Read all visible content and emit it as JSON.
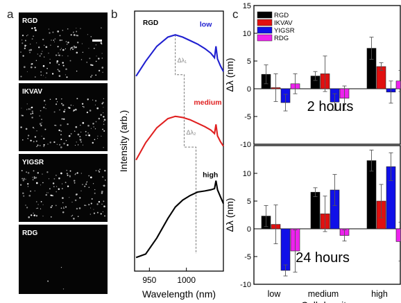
{
  "figure": {
    "panel_letters": [
      "a",
      "b",
      "c"
    ]
  },
  "panel_a": {
    "images": [
      {
        "label": "RGD",
        "dot_density": "medium"
      },
      {
        "label": "IKVAV",
        "dot_density": "medium"
      },
      {
        "label": "YIGSR",
        "dot_density": "medium"
      },
      {
        "label": "RDG",
        "dot_density": "very-low"
      }
    ],
    "scale_bar": true
  },
  "chart_data": [
    {
      "type": "line",
      "panel": "b",
      "title": "RGD",
      "xlabel": "Wavelength (nm)",
      "ylabel": "Intensity (arb.)",
      "xlim": [
        930,
        1050
      ],
      "x_ticks": [
        950,
        1000
      ],
      "y_ticks": [],
      "grid": false,
      "series": [
        {
          "name": "low",
          "color": "#1f1fd0",
          "x": [
            932,
            945,
            960,
            975,
            985,
            995,
            1005,
            1015,
            1025,
            1033,
            1038,
            1040,
            1042,
            1046,
            1050
          ],
          "y": [
            8.25,
            8.9,
            9.55,
            9.95,
            10.05,
            9.95,
            9.8,
            9.65,
            9.45,
            9.25,
            9.05,
            9.55,
            9.0,
            8.7,
            8.45
          ]
        },
        {
          "name": "medium",
          "color": "#e02020",
          "x": [
            932,
            945,
            960,
            975,
            985,
            995,
            1005,
            1015,
            1025,
            1033,
            1038,
            1040,
            1042,
            1046,
            1050
          ],
          "y": [
            4.6,
            5.35,
            6.0,
            6.4,
            6.5,
            6.45,
            6.35,
            6.2,
            6.05,
            5.9,
            5.75,
            6.15,
            5.65,
            5.4,
            5.2
          ]
        },
        {
          "name": "high",
          "color": "#000000",
          "x": [
            932,
            945,
            960,
            975,
            985,
            995,
            1005,
            1015,
            1025,
            1033,
            1038,
            1040,
            1042,
            1046,
            1050
          ],
          "y": [
            0.35,
            0.5,
            1.2,
            2.05,
            2.55,
            2.85,
            3.05,
            3.2,
            3.25,
            3.3,
            3.35,
            3.7,
            3.3,
            3.0,
            2.7
          ]
        }
      ],
      "annotations": [
        {
          "text": "Δλ₁",
          "type": "step-marker"
        },
        {
          "text": "Δλ₂",
          "type": "step-marker"
        }
      ],
      "peak_positions": [
        985,
        997,
        1013
      ]
    },
    {
      "type": "bar",
      "panel": "c-top",
      "annotation": "2 hours",
      "ylabel": "Δλ (nm)",
      "ylim": [
        -10,
        15
      ],
      "y_ticks": [
        -10,
        -5,
        0,
        5,
        10,
        15
      ],
      "categories": [
        "low",
        "medium",
        "high"
      ],
      "legend_position": "top-left",
      "series": [
        {
          "name": "RGD",
          "color": "#000000",
          "values": [
            2.6,
            2.3,
            7.3
          ],
          "errors": [
            1.7,
            0.8,
            2.0
          ]
        },
        {
          "name": "IKVAV",
          "color": "#e01010",
          "values": [
            0.2,
            2.7,
            4.0
          ],
          "errors": [
            2.5,
            3.2,
            0.7
          ]
        },
        {
          "name": "YIGSR",
          "color": "#1010e8",
          "values": [
            -2.5,
            -2.4,
            -0.6
          ],
          "errors": [
            1.5,
            1.5,
            2.0
          ]
        },
        {
          "name": "RDG",
          "color": "#ee22ee",
          "values": [
            0.9,
            -1.7,
            1.4
          ],
          "errors": [
            1.8,
            2.2,
            1.9
          ]
        }
      ]
    },
    {
      "type": "bar",
      "panel": "c-bottom",
      "annotation": "24 hours",
      "xlabel": "Cell density",
      "ylabel": "Δλ (nm)",
      "ylim": [
        -10,
        15
      ],
      "y_ticks": [
        -10,
        -5,
        0,
        5,
        10
      ],
      "categories": [
        "low",
        "medium",
        "high"
      ],
      "series": [
        {
          "name": "RGD",
          "color": "#000000",
          "values": [
            2.3,
            6.6,
            12.3
          ],
          "errors": [
            1.9,
            0.8,
            1.9
          ]
        },
        {
          "name": "IKVAV",
          "color": "#e01010",
          "values": [
            0.8,
            2.7,
            5.0
          ],
          "errors": [
            3.5,
            3.2,
            3.0
          ]
        },
        {
          "name": "YIGSR",
          "color": "#1010e8",
          "values": [
            -7.5,
            7.0,
            11.2
          ],
          "errors": [
            1.0,
            2.8,
            2.5
          ]
        },
        {
          "name": "RDG",
          "color": "#ee22ee",
          "values": [
            -4.0,
            -1.2,
            -2.3
          ],
          "errors": [
            3.8,
            1.0,
            3.5
          ]
        }
      ]
    }
  ]
}
